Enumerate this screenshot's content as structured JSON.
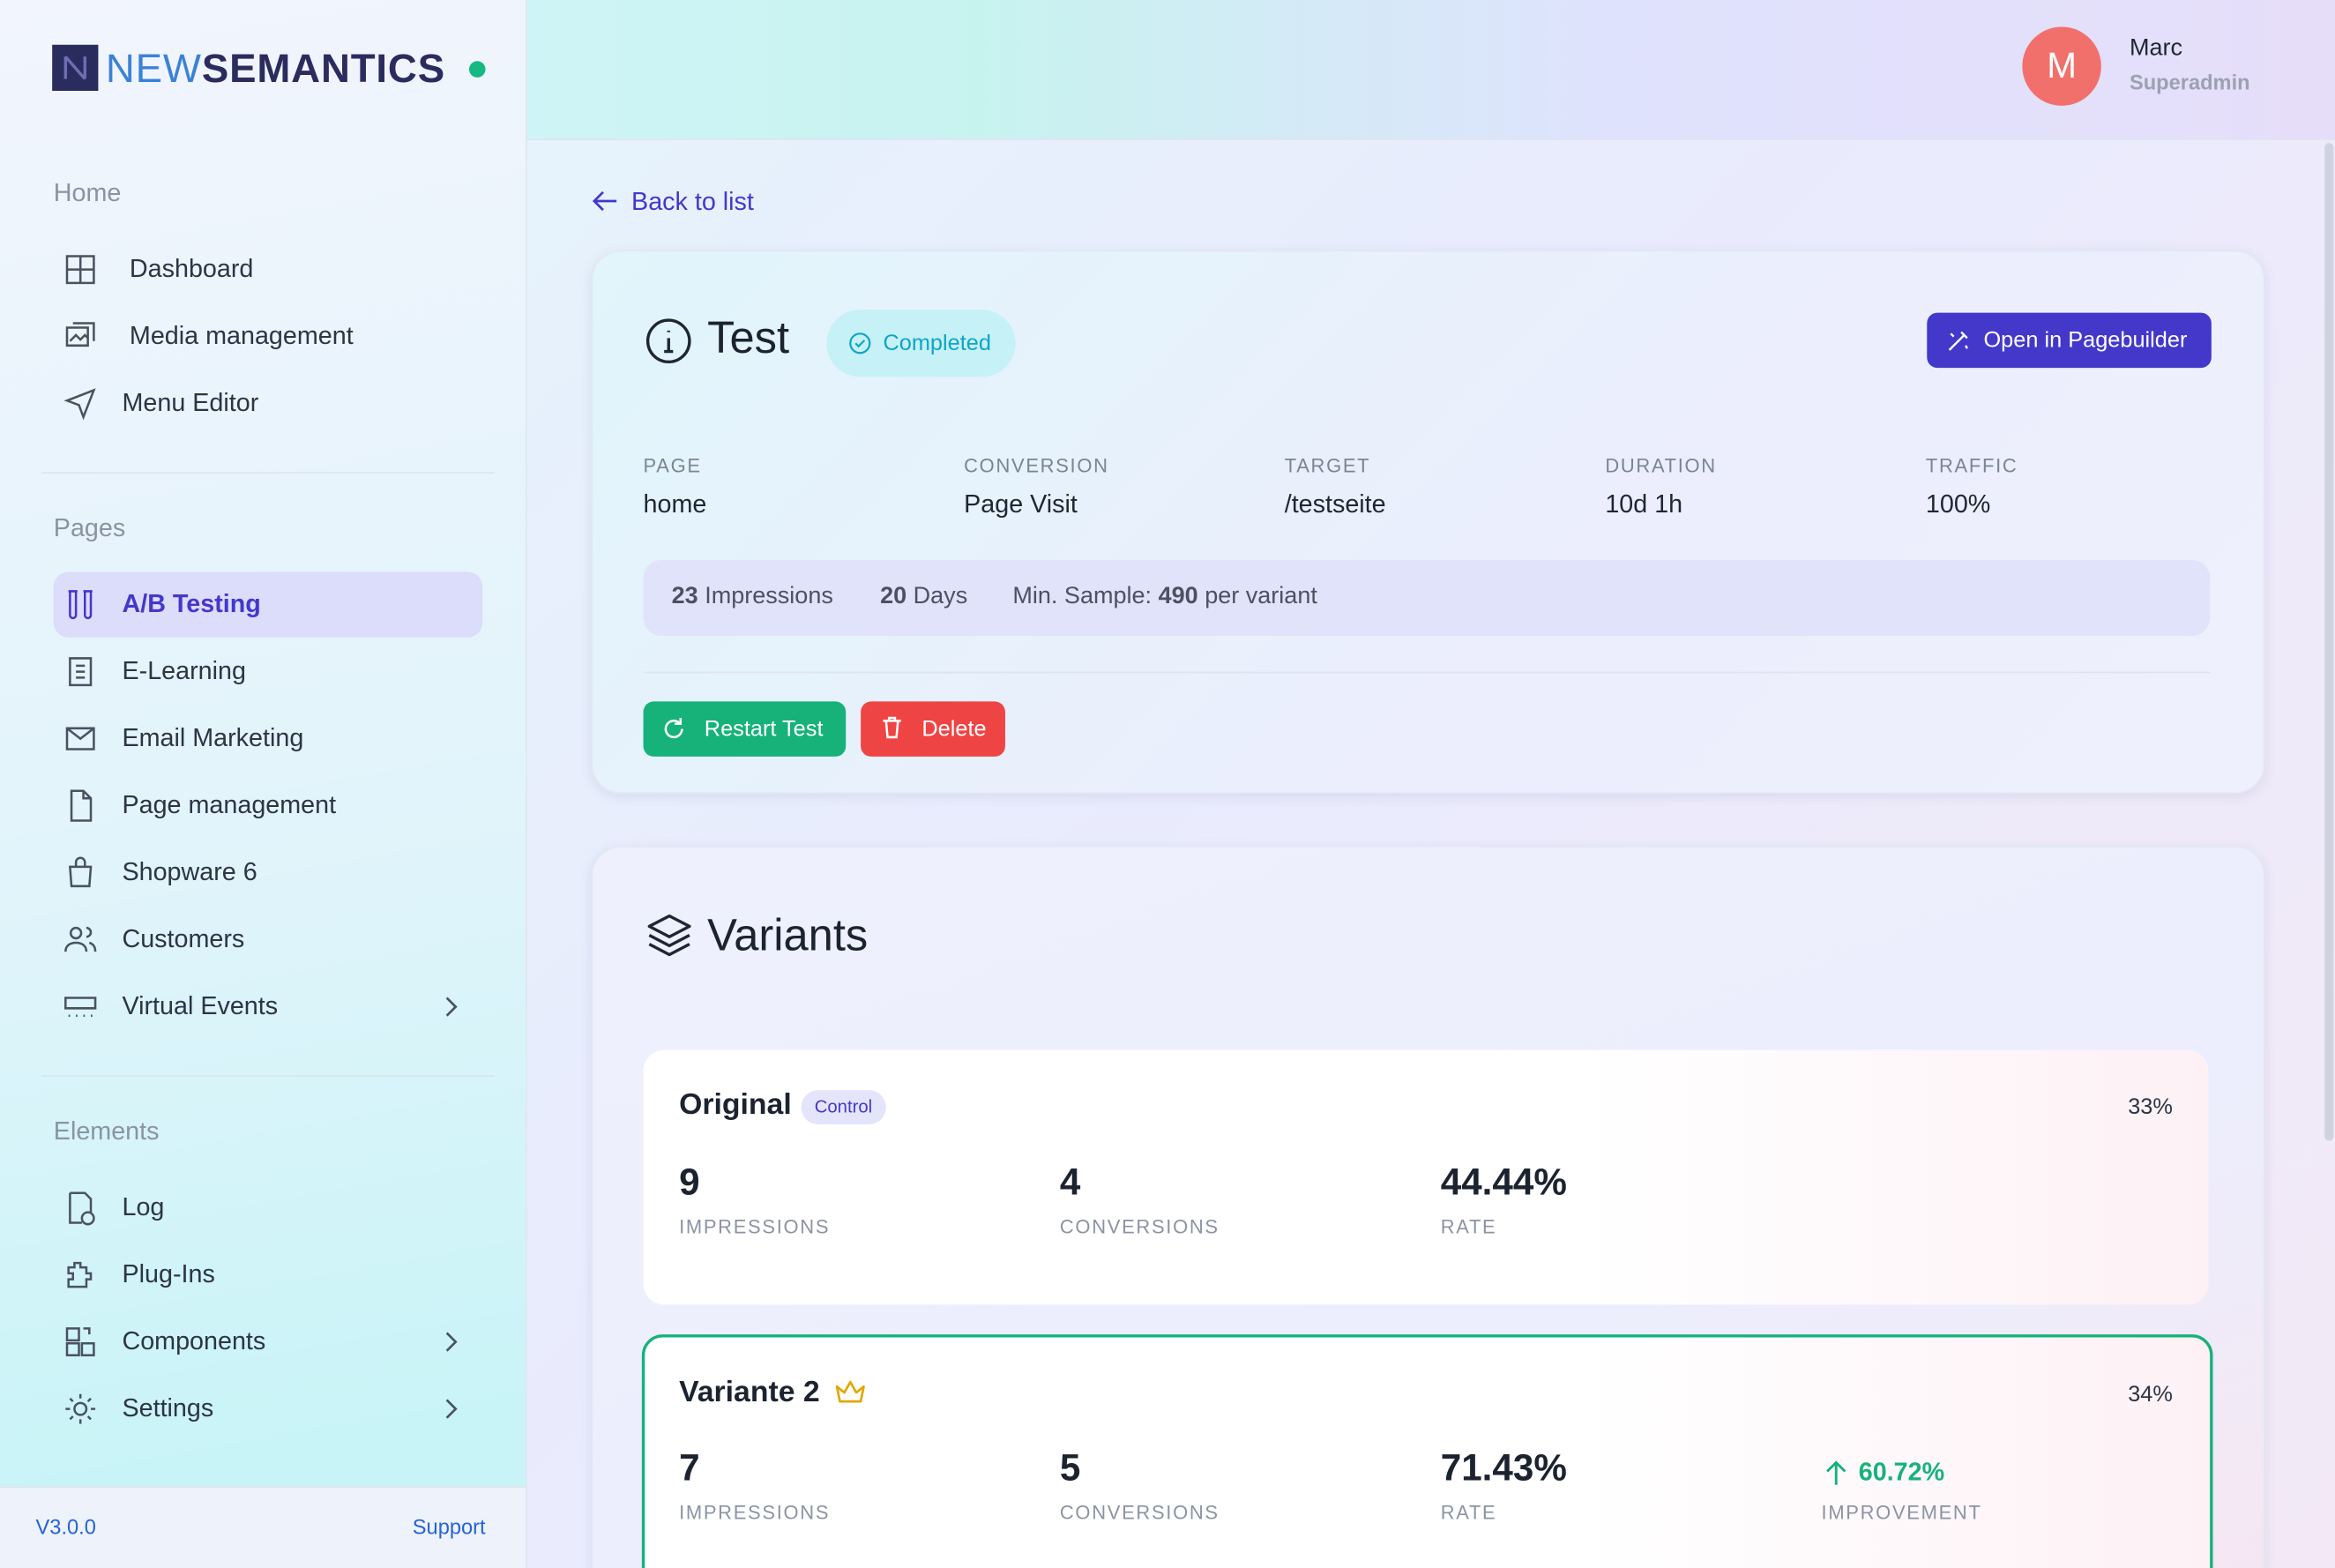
{
  "brand": {
    "prefix": "NEW",
    "suffix": "SEMANTICS"
  },
  "user": {
    "initial": "M",
    "name": "Marc",
    "role": "Superadmin"
  },
  "sidebar": {
    "sections": [
      {
        "title": "Home",
        "items": [
          "Dashboard",
          "Media management",
          "Menu Editor"
        ]
      },
      {
        "title": "Pages",
        "items": [
          "A/B Testing",
          "E-Learning",
          "Email Marketing",
          "Page management",
          "Shopware 6",
          "Customers",
          "Virtual Events"
        ]
      },
      {
        "title": "Elements",
        "items": [
          "Log",
          "Plug-Ins",
          "Components",
          "Settings"
        ]
      }
    ],
    "version": "V3.0.0",
    "support": "Support"
  },
  "back_link": "Back to list",
  "test": {
    "title": "Test",
    "status": "Completed",
    "open_button": "Open in Pagebuilder",
    "details": [
      {
        "label": "PAGE",
        "value": "home"
      },
      {
        "label": "CONVERSION",
        "value": "Page Visit"
      },
      {
        "label": "TARGET",
        "value": "/testseite"
      },
      {
        "label": "DURATION",
        "value": "10d 1h"
      },
      {
        "label": "TRAFFIC",
        "value": "100%"
      }
    ],
    "summary": {
      "impressions": 23,
      "impressions_label": "Impressions",
      "days": 20,
      "days_label": "Days",
      "sample_prefix": "Min. Sample:",
      "sample": 490,
      "sample_suffix": "per variant"
    },
    "restart_button": "Restart Test",
    "delete_button": "Delete"
  },
  "variants": {
    "title": "Variants",
    "items": [
      {
        "name": "Original",
        "badge": "Control",
        "share": "33%",
        "impressions": 9,
        "impressions_label": "IMPRESSIONS",
        "conversions": 4,
        "conversions_label": "CONVERSIONS",
        "rate": "44.44%",
        "rate_label": "RATE"
      },
      {
        "name": "Variante 2",
        "share": "34%",
        "impressions": 7,
        "impressions_label": "IMPRESSIONS",
        "conversions": 5,
        "conversions_label": "CONVERSIONS",
        "rate": "71.43%",
        "rate_label": "RATE",
        "improvement": "60.72%",
        "improvement_label": "IMPROVEMENT"
      }
    ]
  }
}
